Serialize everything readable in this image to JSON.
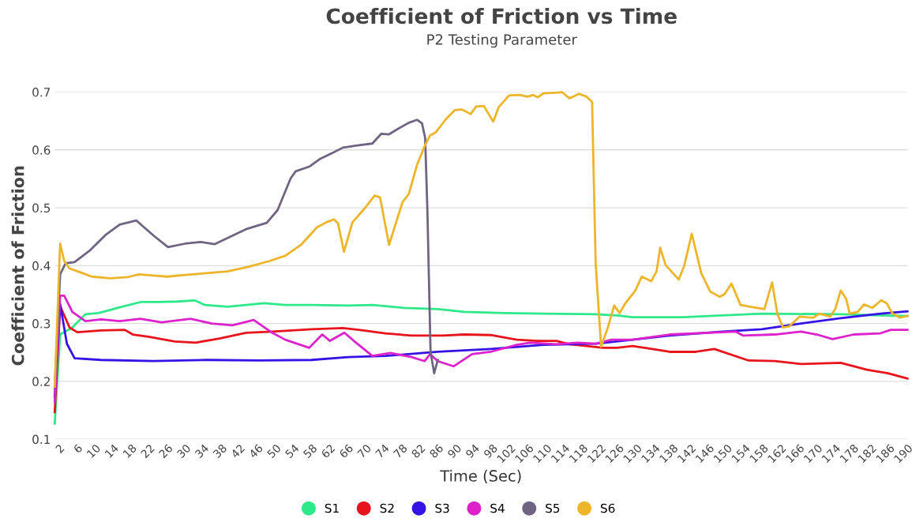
{
  "chart_data": {
    "type": "line",
    "title": "Coefficient of Friction vs Time",
    "subtitle": "P2 Testing Parameter",
    "xlabel": "Time (Sec)",
    "ylabel": "Coefficient of Friction",
    "xlim": [
      1,
      190
    ],
    "xticks": [
      2,
      6,
      10,
      14,
      18,
      22,
      26,
      30,
      34,
      38,
      42,
      46,
      50,
      54,
      58,
      62,
      66,
      70,
      74,
      78,
      82,
      86,
      90,
      94,
      98,
      102,
      106,
      110,
      114,
      118,
      122,
      126,
      130,
      134,
      138,
      142,
      146,
      150,
      154,
      158,
      162,
      166,
      170,
      174,
      178,
      182,
      186,
      190
    ],
    "ylim": [
      0.1,
      0.7
    ],
    "yticks": [
      0.1,
      0.2,
      0.3,
      0.4,
      0.5,
      0.6,
      0.7
    ],
    "grid": "y",
    "legend": "bottom",
    "marker": "none",
    "line_style": "solid",
    "series": [
      {
        "name": "S1",
        "color": "#2ee88a",
        "x": [
          1,
          2.2,
          4.9,
          7.8,
          10.7,
          15.9,
          20,
          24.1,
          28.2,
          32,
          34.3,
          39.3,
          43.4,
          47.4,
          52.1,
          57.9,
          66.1,
          71.4,
          78.4,
          85.9,
          91.8,
          100.5,
          109.3,
          120.9,
          125.6,
          129.1,
          140.2,
          148.9,
          157.7,
          175.2,
          184,
          190
        ],
        "values": [
          0.127,
          0.281,
          0.293,
          0.316,
          0.318,
          0.329,
          0.337,
          0.337,
          0.338,
          0.34,
          0.332,
          0.329,
          0.332,
          0.335,
          0.332,
          0.332,
          0.331,
          0.332,
          0.327,
          0.325,
          0.32,
          0.318,
          0.317,
          0.316,
          0.314,
          0.311,
          0.311,
          0.314,
          0.317,
          0.316,
          0.314,
          0.313
        ]
      },
      {
        "name": "S2",
        "color": "#e8141b",
        "x": [
          1,
          2.2,
          4.3,
          6,
          11.3,
          16.5,
          18.3,
          21.8,
          27.6,
          32.3,
          37.5,
          43.4,
          49.2,
          57.9,
          64.9,
          68.4,
          74.3,
          80.1,
          87.1,
          91.8,
          97.6,
          103.4,
          108.1,
          112.2,
          115.1,
          122.7,
          125.6,
          129.1,
          132.6,
          137.3,
          143.1,
          147.2,
          154.8,
          160.6,
          166.4,
          175.2,
          181,
          185.7,
          190
        ],
        "values": [
          0.147,
          0.33,
          0.293,
          0.285,
          0.288,
          0.289,
          0.281,
          0.277,
          0.269,
          0.267,
          0.274,
          0.284,
          0.286,
          0.29,
          0.292,
          0.289,
          0.283,
          0.279,
          0.279,
          0.281,
          0.28,
          0.272,
          0.27,
          0.27,
          0.264,
          0.258,
          0.258,
          0.261,
          0.257,
          0.251,
          0.251,
          0.256,
          0.236,
          0.235,
          0.23,
          0.232,
          0.22,
          0.214,
          0.205
        ]
      },
      {
        "name": "S3",
        "color": "#3513e6",
        "x": [
          1,
          2.2,
          3.7,
          5.4,
          11.3,
          22.9,
          34.6,
          46.3,
          57.9,
          66.1,
          74.3,
          85.9,
          97.6,
          109.3,
          120.9,
          129.1,
          137.3,
          148.9,
          157.7,
          166.4,
          175.2,
          184,
          190
        ],
        "values": [
          0.173,
          0.334,
          0.265,
          0.24,
          0.237,
          0.235,
          0.237,
          0.236,
          0.237,
          0.242,
          0.244,
          0.251,
          0.256,
          0.263,
          0.265,
          0.272,
          0.279,
          0.286,
          0.29,
          0.3,
          0.309,
          0.317,
          0.321
        ]
      },
      {
        "name": "S4",
        "color": "#dd22cc",
        "x": [
          1,
          2.2,
          3.1,
          4.9,
          7.8,
          11.3,
          15.4,
          20,
          24.7,
          31.1,
          35.8,
          40.4,
          45.1,
          49.2,
          52.1,
          57.4,
          60.3,
          62,
          65.2,
          67.3,
          71.4,
          75.4,
          80.1,
          83,
          84.2,
          85.9,
          89.4,
          93.5,
          97.6,
          103.4,
          106.4,
          112.2,
          116.9,
          120.9,
          124.4,
          129.1,
          137.3,
          151.9,
          153.6,
          160.6,
          166.4,
          169.9,
          173.4,
          178.1,
          184,
          186.3,
          190
        ],
        "values": [
          0.164,
          0.348,
          0.348,
          0.32,
          0.304,
          0.307,
          0.304,
          0.308,
          0.302,
          0.308,
          0.3,
          0.297,
          0.306,
          0.284,
          0.272,
          0.258,
          0.281,
          0.27,
          0.284,
          0.27,
          0.244,
          0.249,
          0.242,
          0.235,
          0.247,
          0.235,
          0.226,
          0.247,
          0.251,
          0.263,
          0.267,
          0.264,
          0.267,
          0.265,
          0.272,
          0.272,
          0.281,
          0.286,
          0.279,
          0.281,
          0.286,
          0.281,
          0.273,
          0.281,
          0.283,
          0.289,
          0.289
        ]
      },
      {
        "name": "S5",
        "color": "#6f6482",
        "x": [
          1,
          2.2,
          3.4,
          5.4,
          8.9,
          12.4,
          15.4,
          19.1,
          22.9,
          26.1,
          29.9,
          33.4,
          36.4,
          39.9,
          43.4,
          48,
          50.4,
          53.3,
          54.4,
          57.4,
          59.7,
          62.6,
          64.9,
          68.4,
          71.4,
          73.4,
          75.1,
          77.2,
          79.5,
          81.3,
          82.4,
          83.1,
          83.6,
          84.3,
          85.1,
          85.9
        ],
        "values": [
          0.19,
          0.385,
          0.404,
          0.406,
          0.427,
          0.454,
          0.471,
          0.478,
          0.452,
          0.432,
          0.438,
          0.441,
          0.437,
          0.45,
          0.463,
          0.474,
          0.496,
          0.551,
          0.563,
          0.571,
          0.584,
          0.595,
          0.604,
          0.608,
          0.611,
          0.628,
          0.627,
          0.637,
          0.647,
          0.652,
          0.646,
          0.621,
          0.496,
          0.251,
          0.214,
          0.237
        ]
      },
      {
        "name": "S6",
        "color": "#ecb52a",
        "x": [
          1,
          2.2,
          3.1,
          4.3,
          7.2,
          9.2,
          13.3,
          17.1,
          19.7,
          22.9,
          25.9,
          29.9,
          34.6,
          39.3,
          43.9,
          48.6,
          52.1,
          55.6,
          59.1,
          61.2,
          62.9,
          63.8,
          65.1,
          67,
          69.6,
          71.9,
          73.1,
          75.1,
          78.1,
          79.5,
          81.3,
          83,
          84.2,
          85.4,
          87.7,
          89.7,
          91.2,
          93.2,
          94.4,
          96.1,
          98.2,
          99.4,
          101.7,
          104,
          105.8,
          107,
          108.1,
          109.3,
          112.2,
          113.4,
          115.1,
          117.2,
          118.9,
          120.1,
          120.9,
          122.1,
          123.6,
          125,
          126.2,
          127.4,
          129.7,
          131.1,
          133.2,
          134.4,
          135.2,
          136.4,
          139.3,
          140.5,
          142.2,
          144.3,
          146.3,
          148.4,
          149.5,
          151,
          153,
          155.9,
          158.3,
          160,
          161.2,
          162.4,
          163.8,
          166.1,
          169.1,
          170.5,
          172.9,
          174,
          175.2,
          176.4,
          177.2,
          179,
          180.4,
          182.2,
          184.2,
          185.4,
          186.6,
          188.3,
          190
        ],
        "values": [
          0.191,
          0.438,
          0.408,
          0.395,
          0.387,
          0.381,
          0.378,
          0.38,
          0.385,
          0.383,
          0.381,
          0.384,
          0.387,
          0.39,
          0.398,
          0.408,
          0.417,
          0.436,
          0.466,
          0.475,
          0.48,
          0.473,
          0.424,
          0.475,
          0.498,
          0.521,
          0.518,
          0.436,
          0.51,
          0.524,
          0.574,
          0.607,
          0.625,
          0.63,
          0.653,
          0.669,
          0.67,
          0.662,
          0.675,
          0.676,
          0.649,
          0.674,
          0.694,
          0.695,
          0.692,
          0.695,
          0.691,
          0.698,
          0.699,
          0.7,
          0.689,
          0.697,
          0.692,
          0.683,
          0.404,
          0.26,
          0.293,
          0.331,
          0.318,
          0.334,
          0.357,
          0.381,
          0.373,
          0.39,
          0.431,
          0.401,
          0.376,
          0.399,
          0.455,
          0.387,
          0.355,
          0.346,
          0.351,
          0.369,
          0.332,
          0.328,
          0.325,
          0.371,
          0.316,
          0.293,
          0.295,
          0.312,
          0.31,
          0.317,
          0.312,
          0.325,
          0.357,
          0.343,
          0.317,
          0.32,
          0.333,
          0.327,
          0.34,
          0.335,
          0.318,
          0.31,
          0.313
        ]
      }
    ]
  }
}
